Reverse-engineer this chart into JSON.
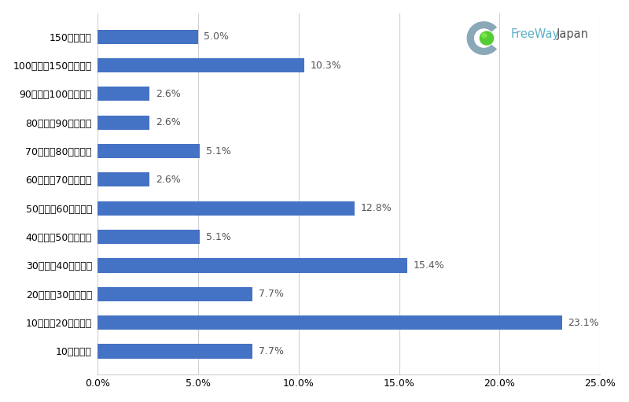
{
  "categories": [
    "150万円以上",
    "100万円～150万円未満",
    "90万円～100万円未満",
    "80万円～90万円未満",
    "70万円～80万円未満",
    "60万円～70万円未満",
    "50万円～60万円未満",
    "40万円～50万円未満",
    "30万円～40万円未満",
    "20万円～30万円未満",
    "10万円～20万円未満",
    "10万円未満"
  ],
  "values": [
    5.0,
    10.3,
    2.6,
    2.6,
    5.1,
    2.6,
    12.8,
    5.1,
    15.4,
    7.7,
    23.1,
    7.7
  ],
  "bar_color": "#4472C4",
  "background_color": "#ffffff",
  "xlim": [
    0,
    25.0
  ],
  "xticks": [
    0.0,
    5.0,
    10.0,
    15.0,
    20.0,
    25.0
  ],
  "xtick_labels": [
    "0.0%",
    "5.0%",
    "10.0%",
    "15.0%",
    "20.0%",
    "25.0%"
  ],
  "label_fontsize": 9,
  "tick_fontsize": 9,
  "grid_color": "#d0d0d0",
  "bar_height": 0.5,
  "logo_text_color": "#5bafc9",
  "logo_text": "FreeWayJapan"
}
